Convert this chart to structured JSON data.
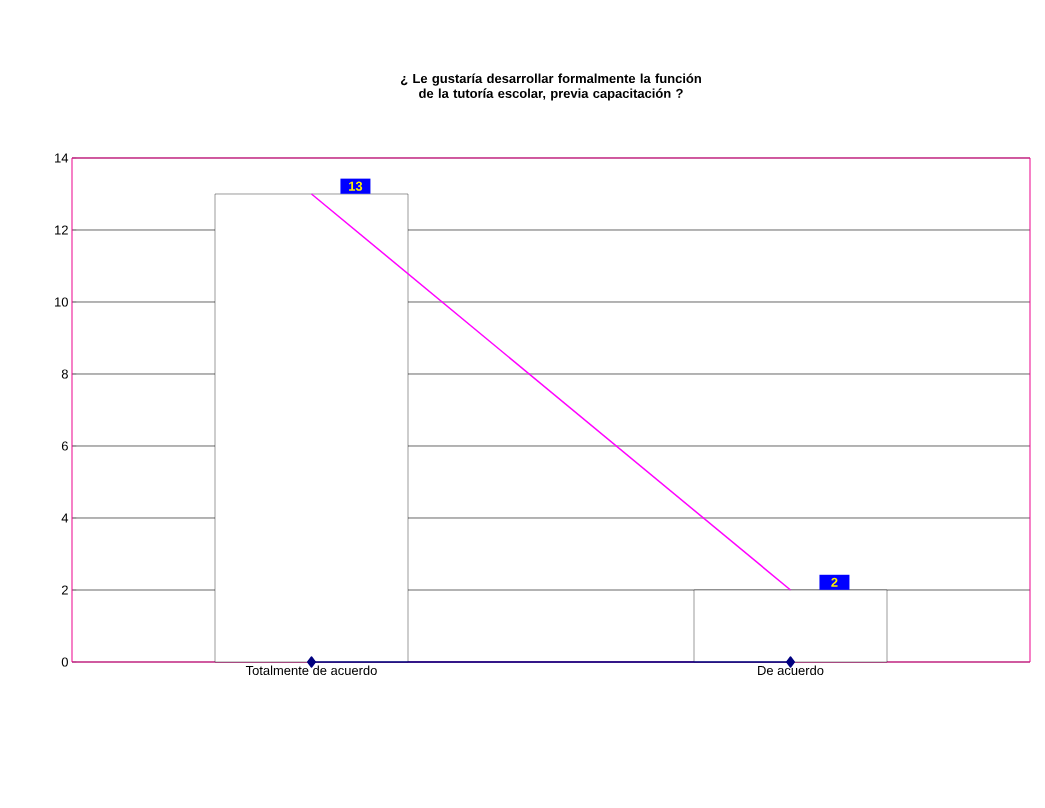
{
  "chart_data": {
    "type": "bar",
    "title": "¿ Le gustaría desarrollar formalmente la función de la tutoría escolar, previa capacitación ?",
    "categories": [
      "Totalmente de acuerdo",
      "De acuerdo"
    ],
    "series": [
      {
        "color": "#ffffff",
        "values": [
          13,
          2
        ],
        "value_labels": [
          "13",
          "2"
        ]
      },
      {
        "type": "line",
        "color": "#ff00ff",
        "marker": "none",
        "values": [
          13,
          2
        ]
      },
      {
        "type": "line",
        "color": "#000080",
        "marker": "diamond",
        "values": [
          0,
          0
        ]
      }
    ],
    "ylim": [
      0,
      14
    ],
    "yticks": [
      0,
      2,
      4,
      6,
      8,
      10,
      12,
      14
    ],
    "grid": "y"
  }
}
